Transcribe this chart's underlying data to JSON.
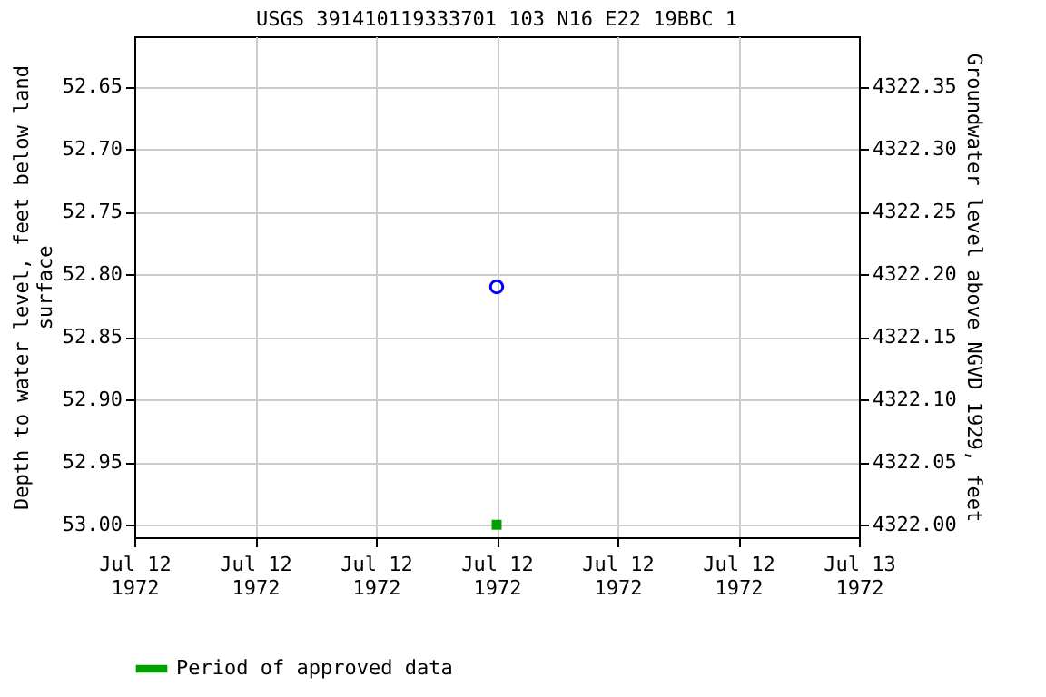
{
  "chart_data": {
    "type": "scatter",
    "title": "USGS 391410119333701 103  N16 E22 19BBC 1",
    "ylabel": "Depth to water level, feet below land surface",
    "y2label": "Groundwater level above NGVD 1929, feet",
    "x": [
      "1972-07-12T12:00"
    ],
    "series": [
      {
        "color": "#0000ff",
        "values": [
          52.81
        ],
        "marker": "circle"
      },
      {
        "name": "Period of approved data",
        "color": "#00a000",
        "values": [
          53.0
        ],
        "marker": "square"
      }
    ],
    "xlim": [
      "1972-07-12T00:00",
      "1972-07-13T00:00"
    ],
    "xticks": [
      {
        "value": "1972-07-12T00:00",
        "label": "Jul 12\n1972"
      },
      {
        "value": "1972-07-12T04:00",
        "label": "Jul 12\n1972"
      },
      {
        "value": "1972-07-12T08:00",
        "label": "Jul 12\n1972"
      },
      {
        "value": "1972-07-12T12:00",
        "label": "Jul 12\n1972"
      },
      {
        "value": "1972-07-12T16:00",
        "label": "Jul 12\n1972"
      },
      {
        "value": "1972-07-12T20:00",
        "label": "Jul 12\n1972"
      },
      {
        "value": "1972-07-13T00:00",
        "label": "Jul 13\n1972"
      }
    ],
    "ylim": [
      53.01,
      52.61
    ],
    "yticks": [
      {
        "value": 52.65,
        "label": "52.65"
      },
      {
        "value": 52.7,
        "label": "52.70"
      },
      {
        "value": 52.75,
        "label": "52.75"
      },
      {
        "value": 52.8,
        "label": "52.80"
      },
      {
        "value": 52.85,
        "label": "52.85"
      },
      {
        "value": 52.9,
        "label": "52.90"
      },
      {
        "value": 52.95,
        "label": "52.95"
      },
      {
        "value": 53.0,
        "label": "53.00"
      }
    ],
    "y2lim": [
      4321.99,
      4322.39
    ],
    "y2ticks": [
      {
        "value": 4322.0,
        "label": "4322.00"
      },
      {
        "value": 4322.05,
        "label": "4322.05"
      },
      {
        "value": 4322.1,
        "label": "4322.10"
      },
      {
        "value": 4322.15,
        "label": "4322.15"
      },
      {
        "value": 4322.2,
        "label": "4322.20"
      },
      {
        "value": 4322.25,
        "label": "4322.25"
      },
      {
        "value": 4322.3,
        "label": "4322.30"
      },
      {
        "value": 4322.35,
        "label": "4322.35"
      }
    ],
    "grid": true,
    "legend": "bottom"
  }
}
